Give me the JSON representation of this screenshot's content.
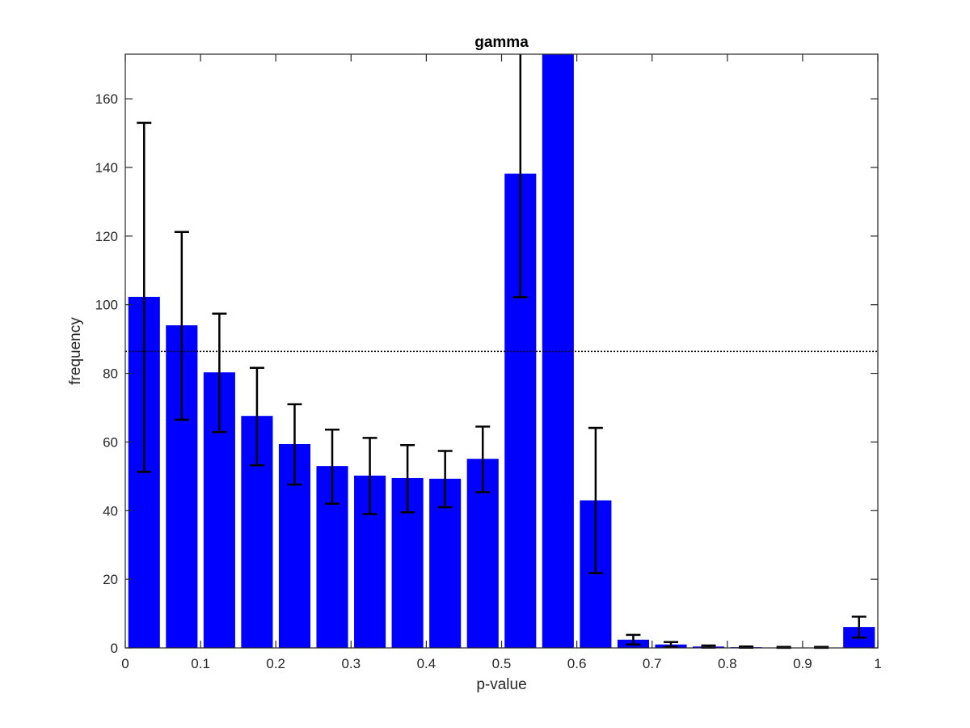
{
  "chart_data": {
    "type": "bar",
    "title": "gamma",
    "xlabel": "p-value",
    "ylabel": "frequency",
    "xlim": [
      0,
      1
    ],
    "ylim": [
      0,
      173
    ],
    "x_ticks": [
      "0",
      "0.1",
      "0.2",
      "0.3",
      "0.4",
      "0.5",
      "0.6",
      "0.7",
      "0.8",
      "0.9",
      "1"
    ],
    "y_ticks": [
      "0",
      "20",
      "40",
      "60",
      "80",
      "100",
      "120",
      "140",
      "160"
    ],
    "bin_width": 0.05,
    "bin_centers": [
      0.025,
      0.075,
      0.125,
      0.175,
      0.225,
      0.275,
      0.325,
      0.375,
      0.425,
      0.475,
      0.525,
      0.575,
      0.625,
      0.675,
      0.725,
      0.775,
      0.825,
      0.875,
      0.925,
      0.975
    ],
    "values": [
      102.3,
      94.0,
      80.3,
      67.6,
      59.4,
      53.0,
      50.2,
      49.5,
      49.3,
      55.1,
      138.2,
      173.0,
      43.0,
      2.4,
      1.0,
      0.4,
      0.2,
      0.1,
      0.1,
      6.1
    ],
    "error_low": [
      51.3,
      66.5,
      62.9,
      53.2,
      47.6,
      42.0,
      39.0,
      39.5,
      41.0,
      45.4,
      102.2,
      null,
      21.8,
      1.0,
      0.3,
      0.1,
      0.05,
      0.03,
      0.03,
      3.0
    ],
    "error_high": [
      153.0,
      121.2,
      97.4,
      81.6,
      71.0,
      63.6,
      61.2,
      59.1,
      57.4,
      64.5,
      173.0,
      null,
      64.1,
      3.8,
      1.7,
      0.7,
      0.4,
      0.3,
      0.3,
      9.1
    ],
    "reference_line": 86.4,
    "bar_color": "#0000ff",
    "error_bar_color": "#000000",
    "reference_line_color": "#000000",
    "grid": false,
    "legend": "none"
  }
}
